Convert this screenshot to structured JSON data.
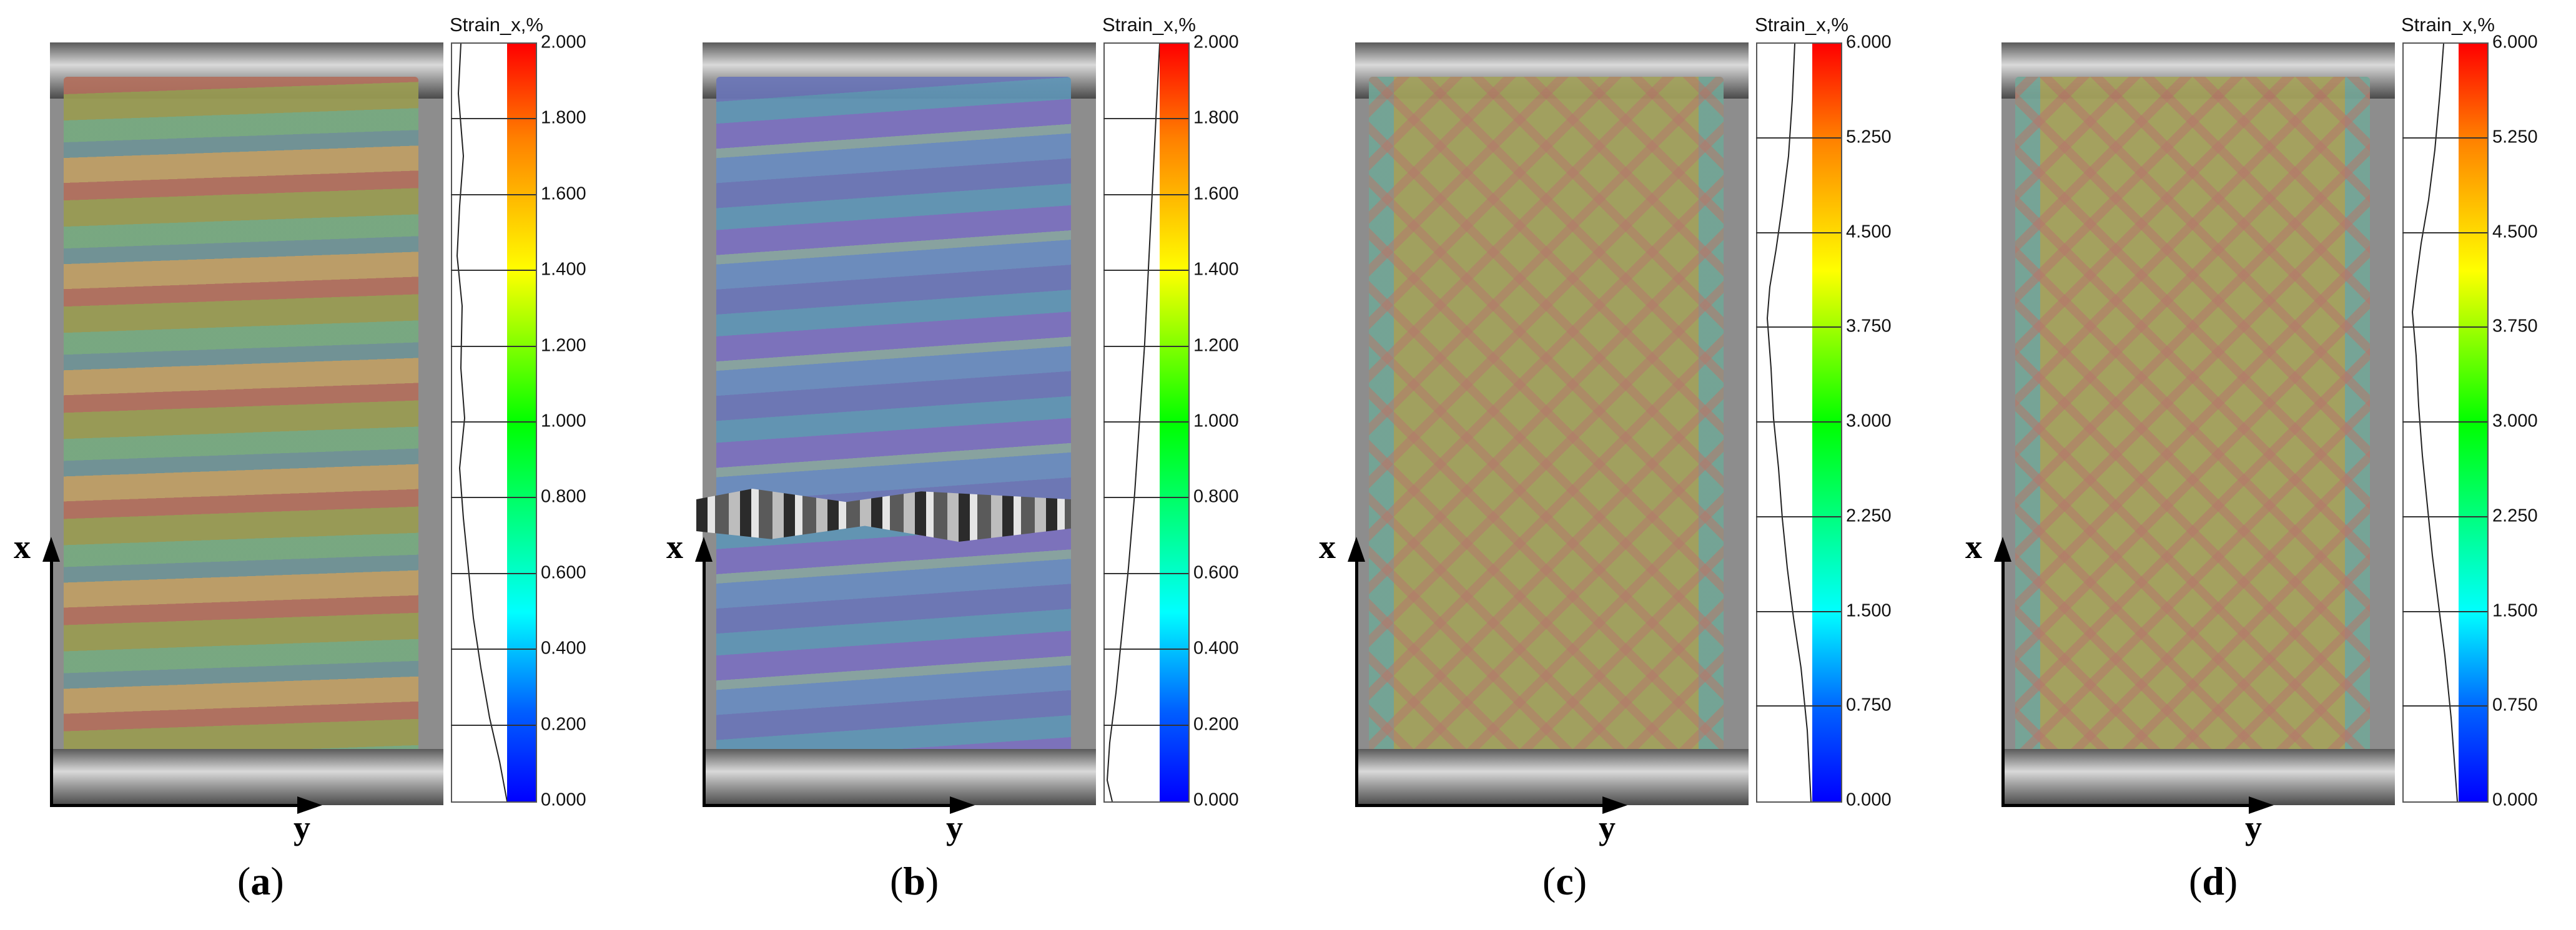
{
  "panels": [
    {
      "caption_open": "(",
      "caption_letter": "a",
      "caption_close": ")",
      "colorbar_title": "Strain_x,%",
      "ticks": [
        "2.000",
        "1.800",
        "1.600",
        "1.400",
        "1.200",
        "1.000",
        "0.800",
        "0.600",
        "0.400",
        "0.200",
        "0.000"
      ],
      "axis_x": "x",
      "axis_y": "y",
      "has_crack": false,
      "pattern": "horizontal-bands",
      "colors": [
        "#9a9c52",
        "#c8a06a",
        "#6fae8c",
        "#5d8fb3",
        "#b6675f"
      ]
    },
    {
      "caption_open": "(",
      "caption_letter": "b",
      "caption_close": ")",
      "colorbar_title": "Strain_x,%",
      "ticks": [
        "2.000",
        "1.800",
        "1.600",
        "1.400",
        "1.200",
        "1.000",
        "0.800",
        "0.600",
        "0.400",
        "0.200",
        "0.000"
      ],
      "axis_x": "x",
      "axis_y": "y",
      "has_crack": true,
      "pattern": "horizontal-bands",
      "colors": [
        "#6b76b8",
        "#5d9ab6",
        "#7d6fc0",
        "#8fb09b",
        "#6a8ec2"
      ]
    },
    {
      "caption_open": "(",
      "caption_letter": "c",
      "caption_close": ")",
      "colorbar_title": "Strain_x,%",
      "ticks": [
        "6.000",
        "5.250",
        "4.500",
        "3.750",
        "3.000",
        "2.250",
        "1.500",
        "0.750",
        "0.000"
      ],
      "axis_x": "x",
      "axis_y": "y",
      "has_crack": false,
      "pattern": "diagonal-mesh",
      "colors": [
        "#a3a25c",
        "#b87868",
        "#8fa86a",
        "#6aa6a0",
        "#c09a5a"
      ]
    },
    {
      "caption_open": "(",
      "caption_letter": "d",
      "caption_close": ")",
      "colorbar_title": "Strain_x,%",
      "ticks": [
        "6.000",
        "5.250",
        "4.500",
        "3.750",
        "3.000",
        "2.250",
        "1.500",
        "0.750",
        "0.000"
      ],
      "axis_x": "x",
      "axis_y": "y",
      "has_crack": false,
      "pattern": "diagonal-mesh",
      "colors": [
        "#a6a35c",
        "#b97568",
        "#8eab6a",
        "#6da7a2",
        "#c49c5a"
      ]
    }
  ]
}
